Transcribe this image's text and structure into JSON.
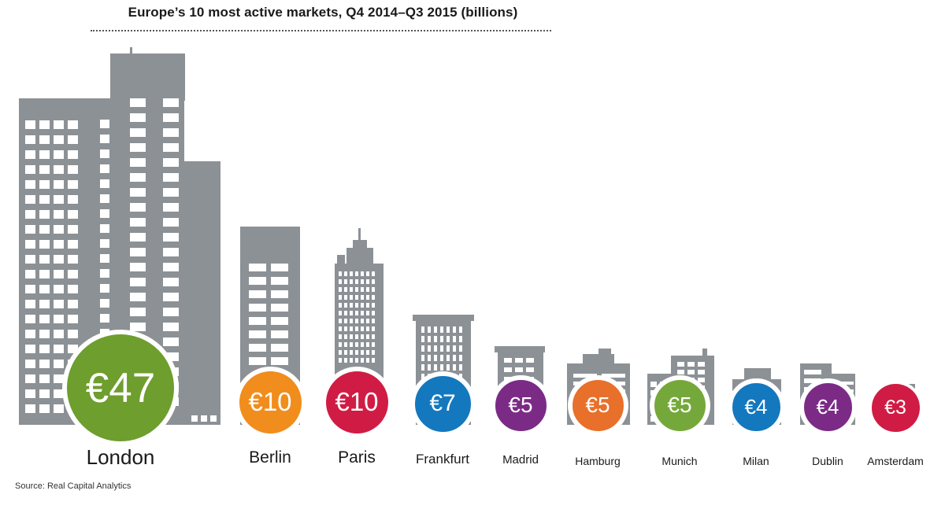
{
  "chart_data": {
    "type": "bar",
    "title": "Europe’s 10 most active markets, Q4 2014–Q3 2015 (billions)",
    "categories": [
      "London",
      "Berlin",
      "Paris",
      "Frankfurt",
      "Madrid",
      "Hamburg",
      "Munich",
      "Milan",
      "Dublin",
      "Amsterdam"
    ],
    "values": [
      47,
      10,
      10,
      7,
      5,
      5,
      5,
      4,
      4,
      3
    ],
    "value_labels": [
      "€47",
      "€10",
      "€10",
      "€7",
      "€5",
      "€5",
      "€5",
      "€4",
      "€4",
      "€3"
    ],
    "badge_colors": [
      "#6e9e2e",
      "#f08d1d",
      "#d01c44",
      "#1478be",
      "#7b2b85",
      "#e8702a",
      "#75a83a",
      "#1478be",
      "#7b2b85",
      "#d01c44"
    ],
    "building_color": "#8c9196",
    "unit": "€ billions",
    "source": "Source: Real Capital Analytics"
  }
}
